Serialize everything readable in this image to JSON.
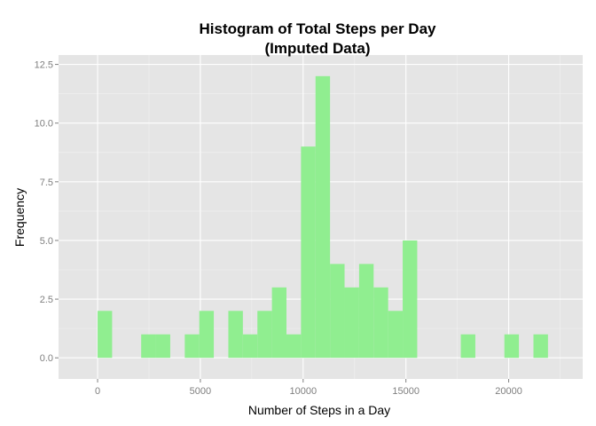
{
  "chart_data": {
    "type": "bar",
    "title": [
      "Histogram of Total Steps per Day",
      "(Imputed Data)"
    ],
    "xlabel": "Number of Steps in a Day",
    "ylabel": "Frequency",
    "xlim": [
      -1900,
      23600
    ],
    "ylim": [
      -0.9,
      12.9
    ],
    "xticks": [
      0,
      5000,
      10000,
      15000,
      20000
    ],
    "xtick_labels": [
      "0",
      "5000",
      "10000",
      "15000",
      "20000"
    ],
    "yticks": [
      0,
      2.5,
      5,
      7.5,
      10,
      12.5
    ],
    "ytick_labels": [
      "0.0",
      "2.5",
      "5.0",
      "7.5",
      "10.0",
      "12.5"
    ],
    "bin_width": 706.8,
    "bin_start": 0,
    "values": [
      2,
      0,
      0,
      1,
      1,
      0,
      1,
      2,
      0,
      2,
      1,
      2,
      3,
      1,
      9,
      12,
      4,
      3,
      4,
      3,
      2,
      5,
      0,
      0,
      0,
      1,
      0,
      0,
      1,
      0,
      1
    ],
    "bar_color": "#90ee90",
    "panel_color": "#e5e5e5",
    "grid": true,
    "grid_color": "#ffffff"
  }
}
